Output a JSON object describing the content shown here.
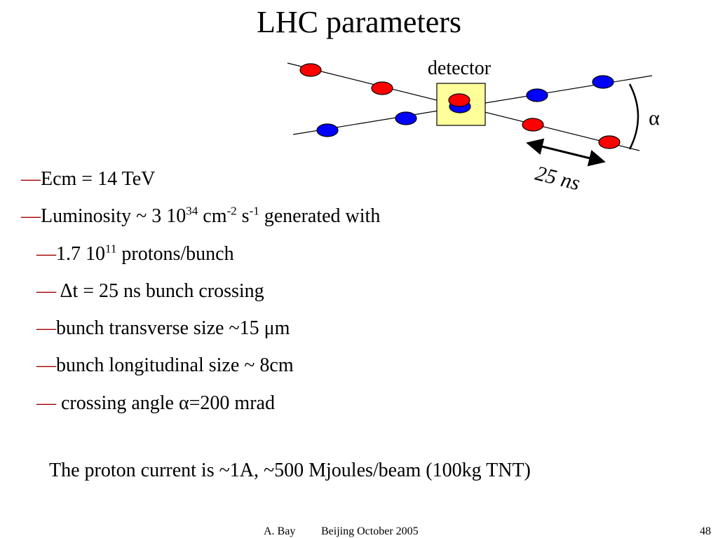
{
  "title": "LHC parameters",
  "diagram": {
    "detector_label": "detector",
    "angle_label": "α",
    "spacing_label": "25 ns"
  },
  "bullets": [
    {
      "marker": "—",
      "parts": [
        {
          "text": "Ecm = 14 TeV"
        }
      ]
    },
    {
      "marker": "—",
      "parts": [
        {
          "text": "Luminosity ~ 3 10"
        },
        {
          "sup": "34"
        },
        {
          "text": " cm"
        },
        {
          "sup": "-2"
        },
        {
          "text": " s"
        },
        {
          "sup": "-1"
        },
        {
          "text": " generated with"
        }
      ],
      "sub": [
        {
          "marker": "—",
          "parts": [
            {
              "text": "1.7 10"
            },
            {
              "sup": "11"
            },
            {
              "text": " protons/bunch"
            }
          ]
        },
        {
          "marker": "—",
          "parts": [
            {
              "text": " Δt = 25 ns bunch crossing"
            }
          ]
        },
        {
          "marker": "—",
          "parts": [
            {
              "text": "bunch transverse size ~15 μm"
            }
          ]
        },
        {
          "marker": "—",
          "parts": [
            {
              "text": "bunch longitudinal size ~ 8cm"
            }
          ]
        },
        {
          "marker": "—",
          "parts": [
            {
              "text": " crossing angle α=200 mrad"
            }
          ]
        }
      ]
    }
  ],
  "note": "The proton current is ~1A, ~500 Mjoules/beam (100kg TNT)",
  "footer": {
    "author": "A. Bay",
    "event": "Beijing October 2005",
    "page": "48"
  }
}
